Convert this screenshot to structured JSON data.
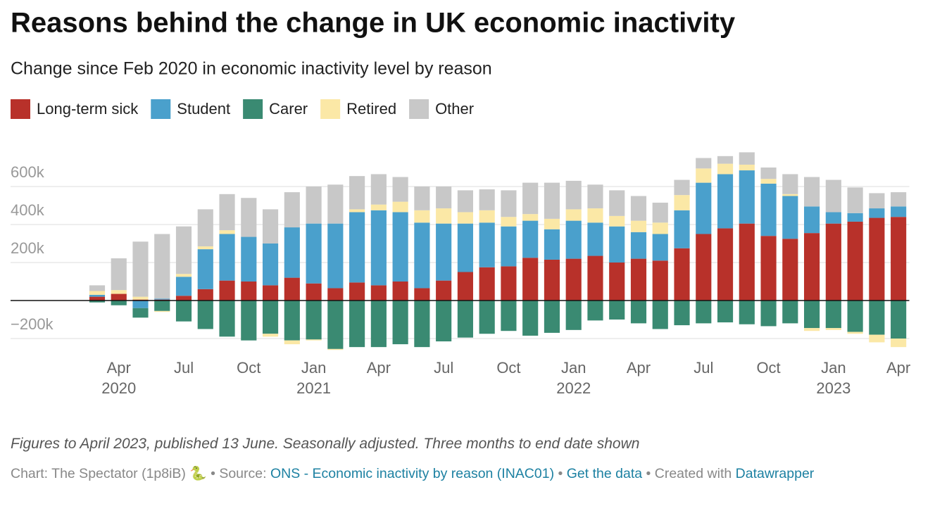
{
  "chart_data": {
    "type": "stacked_bar",
    "title": "Reasons behind the change in UK economic inactivity",
    "subtitle": "Change since Feb 2020 in economic inactivity level by reason",
    "categories": [
      "2020-03",
      "2020-04",
      "2020-05",
      "2020-06",
      "2020-07",
      "2020-08",
      "2020-09",
      "2020-10",
      "2020-11",
      "2020-12",
      "2021-01",
      "2021-02",
      "2021-03",
      "2021-04",
      "2021-05",
      "2021-06",
      "2021-07",
      "2021-08",
      "2021-09",
      "2021-10",
      "2021-11",
      "2021-12",
      "2022-01",
      "2022-02",
      "2022-03",
      "2022-04",
      "2022-05",
      "2022-06",
      "2022-07",
      "2022-08",
      "2022-09",
      "2022-10",
      "2022-11",
      "2022-12",
      "2023-01",
      "2023-02",
      "2023-03",
      "2023-04"
    ],
    "series": [
      {
        "name": "Long-term sick",
        "color": "#b8312a",
        "values": [
          20000,
          35000,
          5000,
          5000,
          25000,
          60000,
          105000,
          100000,
          80000,
          120000,
          90000,
          65000,
          95000,
          80000,
          100000,
          65000,
          105000,
          150000,
          175000,
          180000,
          225000,
          215000,
          220000,
          235000,
          200000,
          220000,
          210000,
          275000,
          350000,
          380000,
          405000,
          340000,
          325000,
          355000,
          405000,
          415000,
          435000,
          440000
        ]
      },
      {
        "name": "Student",
        "color": "#4aa0cc",
        "values": [
          10000,
          0,
          -40000,
          5000,
          100000,
          210000,
          245000,
          235000,
          220000,
          265000,
          315000,
          340000,
          370000,
          395000,
          365000,
          345000,
          300000,
          255000,
          235000,
          210000,
          195000,
          160000,
          200000,
          175000,
          190000,
          140000,
          140000,
          200000,
          270000,
          285000,
          280000,
          275000,
          225000,
          140000,
          60000,
          45000,
          50000,
          55000
        ]
      },
      {
        "name": "Carer",
        "color": "#3a8a72",
        "values": [
          -10000,
          -25000,
          -50000,
          -55000,
          -110000,
          -150000,
          -190000,
          -210000,
          -175000,
          -210000,
          -205000,
          -255000,
          -245000,
          -245000,
          -230000,
          -245000,
          -215000,
          -195000,
          -175000,
          -160000,
          -185000,
          -170000,
          -155000,
          -105000,
          -100000,
          -120000,
          -150000,
          -130000,
          -120000,
          -115000,
          -125000,
          -135000,
          -120000,
          -145000,
          -145000,
          -165000,
          -180000,
          -200000
        ]
      },
      {
        "name": "Retired",
        "color": "#fbe8a6",
        "values": [
          20000,
          20000,
          15000,
          -5000,
          15000,
          15000,
          20000,
          0,
          -15000,
          -20000,
          -5000,
          -5000,
          15000,
          30000,
          55000,
          65000,
          80000,
          60000,
          65000,
          50000,
          35000,
          55000,
          60000,
          75000,
          55000,
          60000,
          60000,
          80000,
          75000,
          55000,
          30000,
          25000,
          10000,
          -15000,
          -10000,
          -10000,
          -40000,
          -45000
        ]
      },
      {
        "name": "Other",
        "color": "#c8c8c8",
        "values": [
          30000,
          167000,
          290000,
          340000,
          250000,
          195000,
          190000,
          205000,
          180000,
          185000,
          195000,
          205000,
          175000,
          160000,
          130000,
          125000,
          115000,
          115000,
          110000,
          140000,
          165000,
          190000,
          150000,
          125000,
          135000,
          130000,
          105000,
          80000,
          55000,
          40000,
          65000,
          60000,
          105000,
          155000,
          170000,
          135000,
          80000,
          75000
        ]
      }
    ],
    "ylim": [
      -250000,
      800000
    ],
    "yticks": [
      {
        "value": -200000,
        "label": "−200k"
      },
      {
        "value": 200000,
        "label": "200k"
      },
      {
        "value": 400000,
        "label": "400k"
      },
      {
        "value": 600000,
        "label": "600k"
      }
    ],
    "xticks": [
      {
        "value": "2020-04",
        "label": "Apr",
        "year": "2020"
      },
      {
        "value": "2020-07",
        "label": "Jul"
      },
      {
        "value": "2020-10",
        "label": "Oct"
      },
      {
        "value": "2021-01",
        "label": "Jan",
        "year": "2021"
      },
      {
        "value": "2021-04",
        "label": "Apr"
      },
      {
        "value": "2021-07",
        "label": "Jul"
      },
      {
        "value": "2021-10",
        "label": "Oct"
      },
      {
        "value": "2022-01",
        "label": "Jan",
        "year": "2022"
      },
      {
        "value": "2022-04",
        "label": "Apr"
      },
      {
        "value": "2022-07",
        "label": "Jul"
      },
      {
        "value": "2022-10",
        "label": "Oct"
      },
      {
        "value": "2023-01",
        "label": "Jan",
        "year": "2023"
      },
      {
        "value": "2023-04",
        "label": "Apr"
      }
    ],
    "grid": true,
    "note": "Figures to April 2023, published 13 June. Seasonally adjusted. Three months to end date shown",
    "credit": {
      "chart": "Chart: The Spectator (1p8iB) 🐍",
      "separator": "•",
      "source_label": "Source:",
      "source_link": "ONS - Economic inactivity by reason (INAC01)",
      "data_link": "Get the data",
      "created": "Created with",
      "tool_link": "Datawrapper"
    }
  }
}
